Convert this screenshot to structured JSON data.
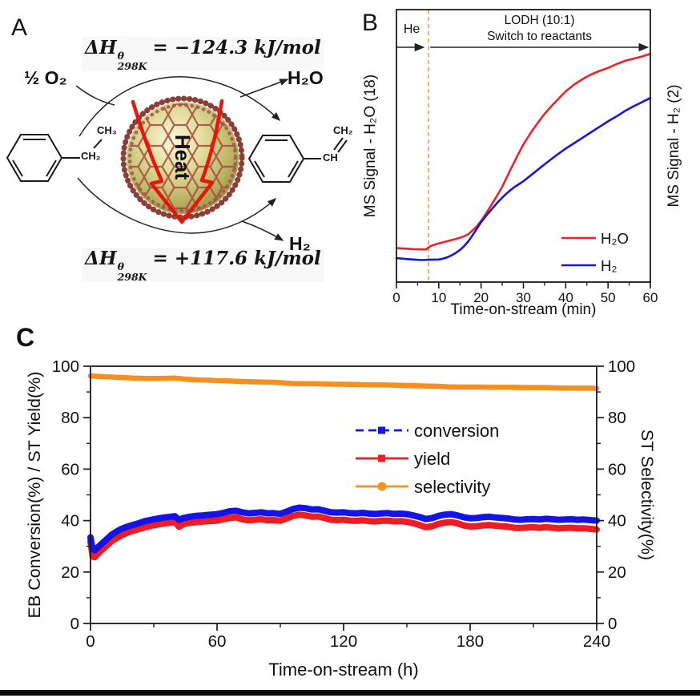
{
  "page": {
    "background": "#ffffff"
  },
  "panelA": {
    "label": "A",
    "eq_top_lhs": "ΔH",
    "eq_top_sup": "θ",
    "eq_top_sub": "298K",
    "eq_top_rhs": "= −124.3 kJ/mol",
    "eq_bot_lhs": "ΔH",
    "eq_bot_sup": "θ",
    "eq_bot_sub": "298K",
    "eq_bot_rhs": "= +117.6 kJ/mol",
    "o2": "½ O₂",
    "h2o": "H₂O",
    "h2": "H₂",
    "heat": "Heat",
    "eb_ch2": "CH₂",
    "eb_ch3": "CH₃",
    "st_ch": "CH",
    "st_ch2": "CH₂",
    "colors": {
      "heat_arrow": "#e8150d",
      "mesh": "#a34a40",
      "beads": "#8a4038"
    }
  },
  "panelB": {
    "label": "B"
  },
  "panelC": {
    "label": "C"
  },
  "chart_data": [
    {
      "id": "panelB",
      "type": "line",
      "title": "",
      "xlabel": "Time-on-stream (min)",
      "ylabel_left": "MS Signal - H₂O (18)",
      "ylabel_right": "MS Signal - H₂ (2)",
      "xlim": [
        0,
        60
      ],
      "ylim": [
        0,
        1
      ],
      "xticks": [
        0,
        10,
        20,
        30,
        40,
        50,
        60
      ],
      "xtick_labels": [
        "0",
        "10",
        "20",
        "30",
        "40",
        "50",
        "60"
      ],
      "xticks_minor": [
        5,
        15,
        25,
        35,
        45,
        55
      ],
      "grid": false,
      "annotations": {
        "he": "He",
        "lodh_line1": "LODH (10:1)",
        "lodh_line2": "Switch to reactants",
        "dashed_line_x": 7.6,
        "dashed_line_color": "#f7a54a"
      },
      "legend": [
        {
          "label": "H₂O",
          "color": "#ee2226"
        },
        {
          "label": "H₂",
          "color": "#1616dd"
        }
      ],
      "series": [
        {
          "name": "H2O",
          "color": "#ee2226",
          "x": [
            0,
            2,
            4,
            6,
            7,
            8,
            10,
            12,
            14,
            16,
            17,
            18,
            19,
            20,
            21,
            22,
            23,
            24,
            25,
            26,
            27,
            28,
            29,
            30,
            31,
            32,
            33,
            34,
            35,
            36,
            37,
            38,
            39,
            40,
            42,
            44,
            46,
            48,
            50,
            52,
            54,
            56,
            58,
            60
          ],
          "y": [
            0.125,
            0.123,
            0.121,
            0.12,
            0.12,
            0.132,
            0.142,
            0.15,
            0.158,
            0.168,
            0.176,
            0.19,
            0.205,
            0.225,
            0.248,
            0.272,
            0.297,
            0.323,
            0.35,
            0.382,
            0.414,
            0.445,
            0.476,
            0.505,
            0.53,
            0.554,
            0.576,
            0.597,
            0.617,
            0.635,
            0.652,
            0.668,
            0.684,
            0.7,
            0.725,
            0.745,
            0.762,
            0.775,
            0.786,
            0.8,
            0.812,
            0.82,
            0.828,
            0.838
          ]
        },
        {
          "name": "H2",
          "color": "#1616dd",
          "x": [
            0,
            2,
            4,
            6,
            8,
            10,
            11,
            12,
            13,
            14,
            15,
            16,
            17,
            18,
            19,
            20,
            21,
            22,
            23,
            24,
            25,
            26,
            27,
            28,
            29,
            30,
            32,
            34,
            36,
            38,
            40,
            42,
            44,
            46,
            48,
            50,
            52,
            54,
            56,
            58,
            60
          ],
          "y": [
            0.088,
            0.085,
            0.083,
            0.081,
            0.082,
            0.083,
            0.086,
            0.091,
            0.098,
            0.107,
            0.118,
            0.132,
            0.15,
            0.172,
            0.196,
            0.22,
            0.24,
            0.258,
            0.276,
            0.294,
            0.31,
            0.325,
            0.338,
            0.35,
            0.36,
            0.37,
            0.395,
            0.42,
            0.444,
            0.468,
            0.49,
            0.51,
            0.53,
            0.55,
            0.57,
            0.59,
            0.608,
            0.628,
            0.645,
            0.66,
            0.676
          ]
        }
      ]
    },
    {
      "id": "panelC",
      "type": "line",
      "title": "",
      "xlabel": "Time-on-stream (h)",
      "ylabel_left": "EB Conversion(%) / ST Yield(%)",
      "ylabel_right": "ST Selectivity(%)",
      "xlim": [
        0,
        240
      ],
      "ylim": [
        0,
        100
      ],
      "xticks": [
        0,
        60,
        120,
        180,
        240
      ],
      "xtick_labels": [
        "0",
        "60",
        "120",
        "180",
        "240"
      ],
      "xticks_minor": [
        30,
        90,
        150,
        210
      ],
      "yticks": [
        0,
        20,
        40,
        60,
        80,
        100
      ],
      "ytick_labels": [
        "0",
        "20",
        "40",
        "60",
        "80",
        "100"
      ],
      "yticks_minor": [
        10,
        30,
        50,
        70,
        90
      ],
      "grid": false,
      "legend": [
        {
          "label": "conversion",
          "color": "#1414e6",
          "marker": "square",
          "dashed": true
        },
        {
          "label": "yield",
          "color": "#ee1c23",
          "marker": "square",
          "dashed": false
        },
        {
          "label": "selectivity",
          "color": "#f78f1e",
          "marker": "circle",
          "dashed": false
        }
      ],
      "series": [
        {
          "name": "conversion",
          "color": "#1414e6",
          "x": [
            0,
            1,
            2,
            4,
            6,
            8,
            10,
            12,
            14,
            16,
            18,
            20,
            23,
            26,
            29,
            32,
            35,
            38,
            40,
            42,
            44,
            47,
            50,
            53,
            56,
            60,
            63,
            66,
            69,
            72,
            75,
            78,
            81,
            84,
            87,
            90,
            93,
            96,
            99,
            102,
            105,
            108,
            111,
            114,
            117,
            120,
            123,
            126,
            129,
            132,
            135,
            138,
            141,
            144,
            147,
            150,
            153,
            156,
            159,
            162,
            165,
            168,
            171,
            174,
            177,
            180,
            183,
            186,
            189,
            192,
            195,
            198,
            201,
            204,
            207,
            210,
            213,
            216,
            219,
            222,
            225,
            228,
            231,
            234,
            237,
            240
          ],
          "y": [
            33.5,
            29,
            28.5,
            30,
            31.5,
            33,
            34.5,
            35.5,
            36.5,
            37.2,
            37.8,
            38.3,
            39,
            39.8,
            40.3,
            40.8,
            41.2,
            41.5,
            41.7,
            40.3,
            41,
            41.5,
            41.8,
            42,
            42.2,
            42.5,
            43,
            43.6,
            43.8,
            43.2,
            42.8,
            43,
            43.2,
            42.8,
            42.9,
            42.6,
            43.5,
            44.5,
            45,
            44.8,
            44.3,
            44.4,
            43.8,
            43.2,
            43.1,
            43.2,
            42.9,
            42.8,
            43,
            42.7,
            42.6,
            42.8,
            42.9,
            42.6,
            42.7,
            42.5,
            42,
            41.4,
            40.6,
            41,
            41.8,
            42.3,
            42.5,
            42,
            41.3,
            40.9,
            41,
            41.3,
            41.5,
            41.2,
            41,
            40.8,
            40.4,
            40.3,
            40.5,
            40.6,
            40.4,
            40.7,
            40.5,
            40.3,
            40.4,
            40.5,
            40.3,
            40.4,
            40.2,
            40
          ]
        },
        {
          "name": "yield",
          "color": "#ee1c23",
          "x": [
            0,
            1,
            2,
            4,
            6,
            8,
            10,
            12,
            14,
            16,
            18,
            20,
            23,
            26,
            29,
            32,
            35,
            38,
            40,
            42,
            44,
            47,
            50,
            53,
            56,
            60,
            63,
            66,
            69,
            72,
            75,
            78,
            81,
            84,
            87,
            90,
            93,
            96,
            99,
            102,
            105,
            108,
            111,
            114,
            117,
            120,
            123,
            126,
            129,
            132,
            135,
            138,
            141,
            144,
            147,
            150,
            153,
            156,
            159,
            162,
            165,
            168,
            171,
            174,
            177,
            180,
            183,
            186,
            189,
            192,
            195,
            198,
            201,
            204,
            207,
            210,
            213,
            216,
            219,
            222,
            225,
            228,
            231,
            234,
            237,
            240
          ],
          "y": [
            32,
            26,
            25.8,
            27.5,
            29,
            30.5,
            32,
            33,
            34,
            34.8,
            35.4,
            36,
            36.7,
            37.4,
            38,
            38.5,
            38.9,
            39.2,
            39.4,
            37.6,
            38.6,
            39.1,
            39.4,
            39.6,
            39.8,
            40,
            40.5,
            41,
            41.2,
            40.5,
            40.1,
            40.3,
            40.5,
            40.1,
            40.2,
            39.9,
            40.8,
            41.8,
            42.3,
            42,
            41.5,
            41.6,
            41,
            40.3,
            40.2,
            40.3,
            40,
            39.9,
            40.1,
            39.8,
            39.7,
            39.9,
            40,
            39.7,
            39.8,
            39.5,
            39,
            38.3,
            37.4,
            37.8,
            38.7,
            39.2,
            39.4,
            38.9,
            38.1,
            37.7,
            37.8,
            38.1,
            38.3,
            38,
            37.8,
            37.6,
            37.2,
            37.1,
            37.3,
            37.4,
            37.2,
            37.4,
            37.2,
            37,
            37.1,
            37.2,
            37,
            37,
            36.8,
            36.5
          ]
        },
        {
          "name": "selectivity",
          "color": "#f78f1e",
          "x": [
            0,
            5,
            10,
            15,
            20,
            25,
            30,
            35,
            40,
            45,
            50,
            55,
            60,
            65,
            70,
            75,
            80,
            85,
            90,
            95,
            100,
            105,
            110,
            115,
            120,
            125,
            130,
            135,
            140,
            145,
            150,
            155,
            160,
            165,
            170,
            175,
            180,
            185,
            190,
            195,
            200,
            205,
            210,
            215,
            220,
            225,
            230,
            235,
            240
          ],
          "y": [
            96.2,
            96,
            95.8,
            95.6,
            95.4,
            95.3,
            95.2,
            95.3,
            95.4,
            95,
            94.7,
            94.6,
            94.4,
            94.3,
            94.1,
            94,
            93.9,
            93.8,
            93.6,
            93.3,
            93.2,
            93.2,
            93.1,
            93,
            93,
            92.9,
            92.8,
            92.8,
            92.7,
            92.6,
            92.5,
            92.4,
            92.3,
            92.2,
            92,
            91.9,
            91.9,
            91.9,
            91.8,
            91.8,
            91.8,
            91.7,
            91.7,
            91.7,
            91.6,
            91.5,
            91.5,
            91.5,
            91.4
          ]
        }
      ]
    }
  ]
}
